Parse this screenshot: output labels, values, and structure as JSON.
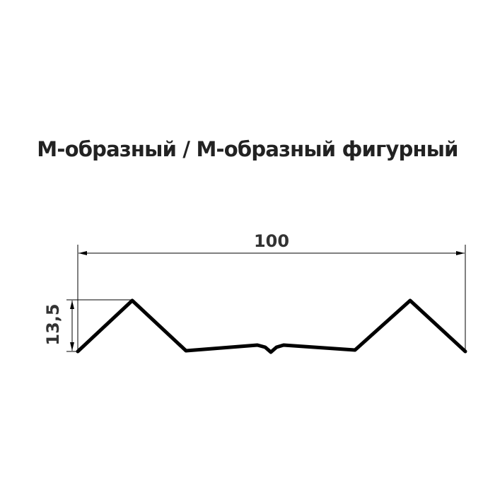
{
  "title": "М-образный / М-образный фигурный",
  "dimensions": {
    "width_label": "100",
    "height_label": "13,5"
  },
  "colors": {
    "profile": "#000000",
    "text": "#333333"
  }
}
